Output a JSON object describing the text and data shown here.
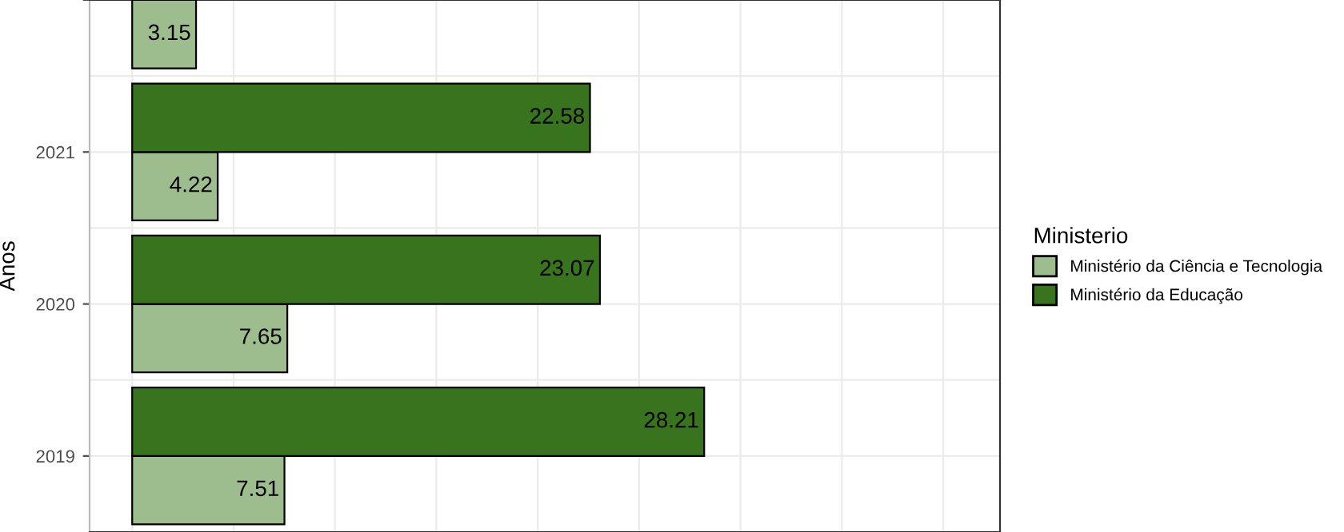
{
  "chart_data": {
    "type": "bar",
    "orientation": "horizontal",
    "ylabel": "Anos",
    "legend_title": "Ministerio",
    "categories": [
      null,
      "2021",
      "2020",
      "2019"
    ],
    "series": [
      {
        "name": "Ministério da Ciência e Tecnologia",
        "color": "#9dbd8f",
        "values": [
          3.15,
          4.22,
          7.65,
          7.51
        ]
      },
      {
        "name": "Ministério da Educação",
        "color": "#38731e",
        "values": [
          null,
          22.58,
          23.07,
          28.21
        ]
      }
    ],
    "xlim": [
      -2.1,
      42.8
    ],
    "xticks": [
      {
        "value": 0,
        "label": null
      },
      {
        "value": 5,
        "label": null
      },
      {
        "value": 10,
        "label": null
      },
      {
        "value": 15,
        "label": null
      },
      {
        "value": 20,
        "label": null
      },
      {
        "value": 25,
        "label": null
      },
      {
        "value": 30,
        "label": null
      },
      {
        "value": 35,
        "label": null
      },
      {
        "value": 40,
        "label": null
      }
    ],
    "tick_labels": "y",
    "grid": true,
    "legend": "right",
    "data_labels": true
  }
}
